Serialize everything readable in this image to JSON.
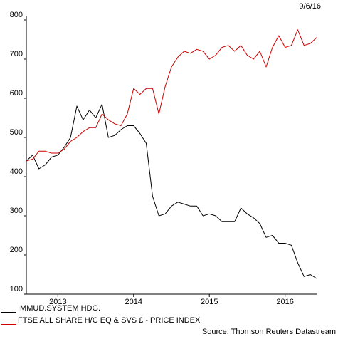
{
  "date_label": "9/6/16",
  "source": "Source: Thomson Reuters Datastream",
  "chart_data": {
    "type": "line",
    "ylim": [
      100,
      800
    ],
    "y_ticks": [
      100,
      200,
      300,
      400,
      500,
      600,
      700,
      800
    ],
    "x_tick_labels": [
      "2013",
      "2014",
      "2015",
      "2016"
    ],
    "xlim": [
      "2012-08",
      "2016-06"
    ],
    "grid": false,
    "legend_placement": "bottom-left",
    "series": [
      {
        "name": "IMMUD.SYSTEM HDG.",
        "color": "#000000",
        "points": [
          [
            "2012-08",
            440
          ],
          [
            "2012-09",
            455
          ],
          [
            "2012-10",
            420
          ],
          [
            "2012-11",
            430
          ],
          [
            "2012-12",
            450
          ],
          [
            "2013-01",
            455
          ],
          [
            "2013-02",
            475
          ],
          [
            "2013-03",
            500
          ],
          [
            "2013-04",
            580
          ],
          [
            "2013-05",
            545
          ],
          [
            "2013-06",
            570
          ],
          [
            "2013-07",
            550
          ],
          [
            "2013-08",
            585
          ],
          [
            "2013-09",
            500
          ],
          [
            "2013-10",
            505
          ],
          [
            "2013-11",
            520
          ],
          [
            "2013-12",
            530
          ],
          [
            "2014-01",
            530
          ],
          [
            "2014-02",
            510
          ],
          [
            "2014-03",
            485
          ],
          [
            "2014-04",
            350
          ],
          [
            "2014-05",
            300
          ],
          [
            "2014-06",
            305
          ],
          [
            "2014-07",
            325
          ],
          [
            "2014-08",
            335
          ],
          [
            "2014-09",
            330
          ],
          [
            "2014-10",
            325
          ],
          [
            "2014-11",
            325
          ],
          [
            "2014-12",
            300
          ],
          [
            "2015-01",
            305
          ],
          [
            "2015-02",
            300
          ],
          [
            "2015-03",
            285
          ],
          [
            "2015-04",
            285
          ],
          [
            "2015-05",
            285
          ],
          [
            "2015-06",
            320
          ],
          [
            "2015-07",
            305
          ],
          [
            "2015-08",
            295
          ],
          [
            "2015-09",
            280
          ],
          [
            "2015-10",
            245
          ],
          [
            "2015-11",
            250
          ],
          [
            "2015-12",
            230
          ],
          [
            "2016-01",
            230
          ],
          [
            "2016-02",
            225
          ],
          [
            "2016-03",
            180
          ],
          [
            "2016-04",
            145
          ],
          [
            "2016-05",
            150
          ],
          [
            "2016-06",
            140
          ]
        ]
      },
      {
        "name": "FTSE ALL SHARE H/C EQ & SVS £ - PRICE INDEX",
        "color": "#cc0000",
        "points": [
          [
            "2012-08",
            440
          ],
          [
            "2012-09",
            445
          ],
          [
            "2012-10",
            465
          ],
          [
            "2012-11",
            465
          ],
          [
            "2012-12",
            460
          ],
          [
            "2013-01",
            460
          ],
          [
            "2013-02",
            470
          ],
          [
            "2013-03",
            490
          ],
          [
            "2013-04",
            500
          ],
          [
            "2013-05",
            515
          ],
          [
            "2013-06",
            525
          ],
          [
            "2013-07",
            525
          ],
          [
            "2013-08",
            560
          ],
          [
            "2013-09",
            545
          ],
          [
            "2013-10",
            535
          ],
          [
            "2013-11",
            530
          ],
          [
            "2013-12",
            560
          ],
          [
            "2014-01",
            625
          ],
          [
            "2014-02",
            610
          ],
          [
            "2014-03",
            625
          ],
          [
            "2014-04",
            625
          ],
          [
            "2014-05",
            560
          ],
          [
            "2014-06",
            630
          ],
          [
            "2014-07",
            680
          ],
          [
            "2014-08",
            705
          ],
          [
            "2014-09",
            720
          ],
          [
            "2014-10",
            715
          ],
          [
            "2014-11",
            725
          ],
          [
            "2014-12",
            720
          ],
          [
            "2015-01",
            700
          ],
          [
            "2015-02",
            710
          ],
          [
            "2015-03",
            730
          ],
          [
            "2015-04",
            735
          ],
          [
            "2015-05",
            720
          ],
          [
            "2015-06",
            735
          ],
          [
            "2015-07",
            710
          ],
          [
            "2015-08",
            700
          ],
          [
            "2015-09",
            720
          ],
          [
            "2015-10",
            680
          ],
          [
            "2015-11",
            730
          ],
          [
            "2015-12",
            760
          ],
          [
            "2016-01",
            730
          ],
          [
            "2016-02",
            735
          ],
          [
            "2016-03",
            775
          ],
          [
            "2016-04",
            735
          ],
          [
            "2016-05",
            740
          ],
          [
            "2016-06",
            755
          ]
        ]
      }
    ]
  }
}
